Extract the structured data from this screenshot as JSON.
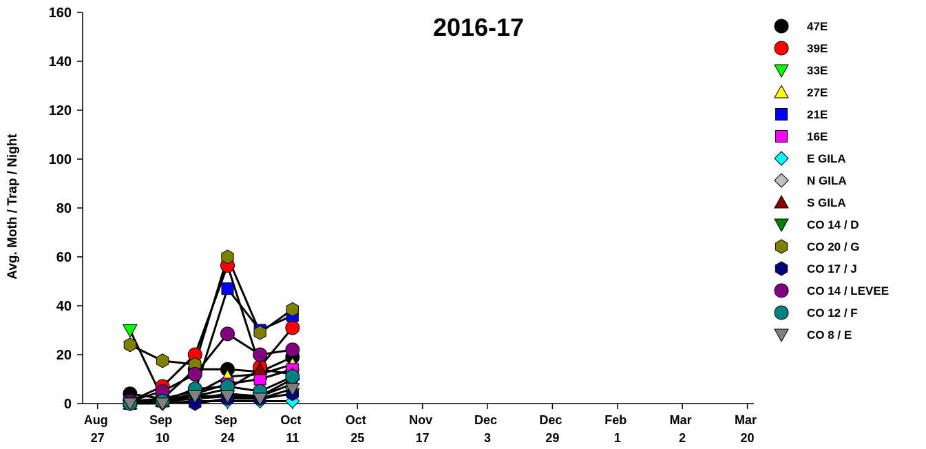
{
  "chart_data": {
    "type": "line",
    "title": "2016-17",
    "y_label": "Avg. Moth / Trap / Night",
    "xlim": [
      -0.23,
      10.1
    ],
    "ylim": [
      0,
      160
    ],
    "yticks": [
      0,
      20,
      40,
      60,
      80,
      100,
      120,
      140,
      160
    ],
    "xticks": [
      {
        "value": 0,
        "label": "Aug 27"
      },
      {
        "value": 1,
        "label": "Sep 10"
      },
      {
        "value": 2,
        "label": "Sep 24"
      },
      {
        "value": 3,
        "label": "Oct 11"
      },
      {
        "value": 4,
        "label": "Oct 25"
      },
      {
        "value": 5,
        "label": "Nov 17"
      },
      {
        "value": 6,
        "label": "Dec 3"
      },
      {
        "value": 7,
        "label": "Dec 29"
      },
      {
        "value": 8,
        "label": "Feb 1"
      },
      {
        "value": 9,
        "label": "Mar 2"
      },
      {
        "value": 10,
        "label": "Mar 20"
      }
    ],
    "grid": false,
    "line_color": "#000000",
    "legend": "right",
    "x": [
      0.5,
      1,
      1.5,
      2,
      2.5,
      3
    ],
    "series": [
      {
        "name": "47E",
        "color": "#000000",
        "marker": "circle",
        "values": [
          4,
          2,
          14,
          14,
          13,
          19
        ]
      },
      {
        "name": "39E",
        "color": "#ff0000",
        "marker": "circle",
        "values": [
          1,
          7,
          20,
          56.5,
          15,
          31
        ]
      },
      {
        "name": "33E",
        "color": "#00ff00",
        "marker": "triangle-down",
        "values": [
          30,
          2,
          3,
          3,
          2,
          4
        ]
      },
      {
        "name": "27E",
        "color": "#ffff00",
        "marker": "triangle-up",
        "values": [
          1,
          1,
          4,
          11,
          12,
          16
        ]
      },
      {
        "name": "21E",
        "color": "#0000ff",
        "marker": "square",
        "values": [
          1,
          2,
          5,
          47,
          30,
          36
        ]
      },
      {
        "name": "16E",
        "color": "#ff00ff",
        "marker": "square",
        "values": [
          0,
          1,
          4,
          8,
          10,
          14
        ]
      },
      {
        "name": "E GILA",
        "color": "#00ffff",
        "marker": "diamond",
        "values": [
          0,
          0,
          1,
          1,
          1,
          1
        ]
      },
      {
        "name": "N GILA",
        "color": "#c0c0c0",
        "marker": "diamond",
        "values": [
          0,
          1,
          2,
          3,
          3,
          10
        ]
      },
      {
        "name": "S GILA",
        "color": "#8b0000",
        "marker": "triangle-up",
        "values": [
          0,
          1,
          3,
          6,
          14,
          12
        ]
      },
      {
        "name": "CO 14 / D",
        "color": "#008000",
        "marker": "triangle-down",
        "values": [
          0,
          1,
          2,
          4,
          3,
          8
        ]
      },
      {
        "name": "CO 20 / G",
        "color": "#808000",
        "marker": "hexagon",
        "values": [
          24,
          17.5,
          16,
          60,
          29,
          38.5
        ]
      },
      {
        "name": "CO 17 / J",
        "color": "#000080",
        "marker": "hexagon",
        "values": [
          0,
          1,
          0,
          2,
          2,
          4
        ]
      },
      {
        "name": "CO 14 / LEVEE",
        "color": "#800080",
        "marker": "circle",
        "values": [
          1,
          5,
          12,
          28.5,
          20,
          22
        ]
      },
      {
        "name": "CO 12 / F",
        "color": "#008080",
        "marker": "circle",
        "values": [
          0,
          1,
          6,
          7,
          5,
          11
        ]
      },
      {
        "name": "CO 8 / E",
        "color": "#808080",
        "marker": "triangle-down",
        "values": [
          0,
          0,
          3,
          3,
          2,
          6
        ]
      }
    ]
  }
}
